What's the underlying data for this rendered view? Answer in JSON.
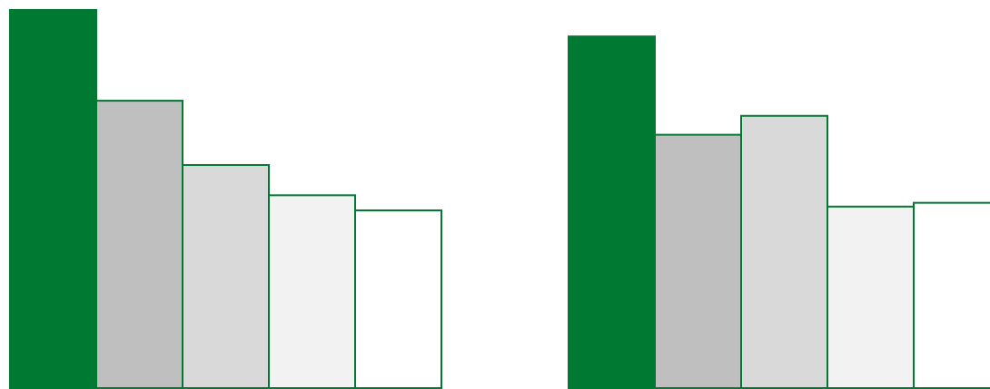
{
  "chart_data": [
    {
      "type": "bar",
      "values": [
        100,
        76,
        59,
        51,
        47
      ],
      "ylim": [
        0,
        100
      ],
      "grid": false,
      "fills": [
        "#007a33",
        "#bfbfbf",
        "#d9d9d9",
        "#f2f2f2",
        "#ffffff"
      ]
    },
    {
      "type": "bar",
      "values": [
        93,
        67,
        72,
        48,
        49
      ],
      "ylim": [
        0,
        100
      ],
      "grid": false,
      "fills": [
        "#007a33",
        "#bfbfbf",
        "#d9d9d9",
        "#f2f2f2",
        "#ffffff"
      ]
    }
  ],
  "colors": {
    "stroke": "#007a33"
  }
}
